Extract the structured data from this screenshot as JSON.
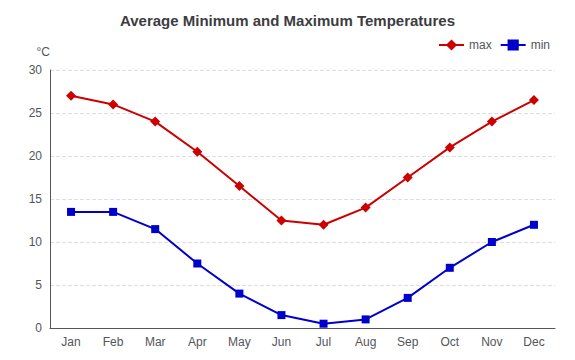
{
  "chart_data": {
    "type": "line",
    "title": "Average Minimum and Maximum Temperatures",
    "ylabel": "°C",
    "categories": [
      "Jan",
      "Feb",
      "Mar",
      "Apr",
      "May",
      "Jun",
      "Jul",
      "Aug",
      "Sep",
      "Oct",
      "Nov",
      "Dec"
    ],
    "series": [
      {
        "name": "max",
        "color": "#cc0000",
        "marker": "diamond",
        "values": [
          27,
          26,
          24,
          20.5,
          16.5,
          12.5,
          12,
          14,
          17.5,
          21,
          24,
          26.5
        ]
      },
      {
        "name": "min",
        "color": "#0000cc",
        "marker": "square",
        "values": [
          13.5,
          13.5,
          11.5,
          7.5,
          4,
          1.5,
          0.5,
          1,
          3.5,
          7,
          10,
          12
        ]
      }
    ],
    "ylim": [
      0,
      30
    ],
    "yticks": [
      0,
      5,
      10,
      15,
      20,
      25,
      30
    ],
    "grid": true,
    "legend": "upper right"
  }
}
